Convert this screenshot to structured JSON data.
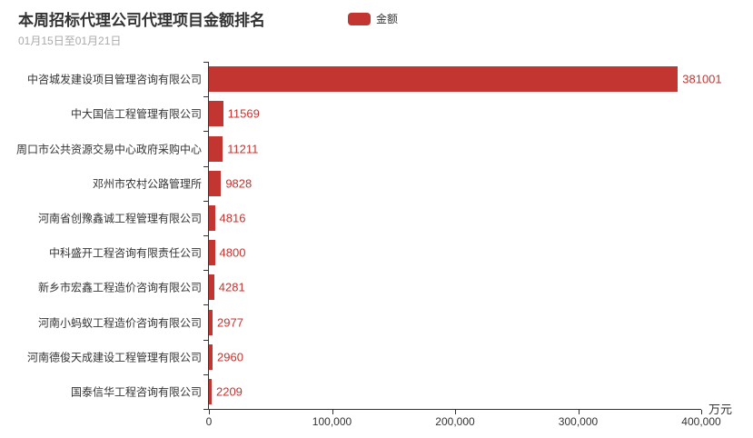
{
  "header": {
    "title": "本周招标代理公司代理项目金额排名",
    "subtitle": "01月15日至01月21日",
    "legend": {
      "label": "金额",
      "swatch_color": "#c23531"
    }
  },
  "chart_data": {
    "type": "bar",
    "orientation": "horizontal",
    "title": "本周招标代理公司代理项目金额排名",
    "subtitle": "01月15日至01月21日",
    "series_name": "金额",
    "categories": [
      "中咨城发建设项目管理咨询有限公司",
      "中大国信工程管理有限公司",
      "周口市公共资源交易中心政府采购中心",
      "邓州市农村公路管理所",
      "河南省创豫鑫诚工程管理有限公司",
      "中科盛开工程咨询有限责任公司",
      "新乡市宏鑫工程造价咨询有限公司",
      "河南小蚂蚁工程造价咨询有限公司",
      "河南德俊天成建设工程管理有限公司",
      "国泰信华工程咨询有限公司"
    ],
    "values": [
      381001,
      11569,
      11211,
      9828,
      4816,
      4800,
      4281,
      2977,
      2960,
      2209
    ],
    "value_labels": [
      "381001",
      "11569",
      "11211",
      "9828",
      "4816",
      "4800",
      "4281",
      "2977",
      "2960",
      "2209"
    ],
    "xlim": [
      0,
      400000
    ],
    "x_tick_values": [
      0,
      100000,
      200000,
      300000,
      400000
    ],
    "x_tick_labels": [
      "0",
      "100,000",
      "200,000",
      "300,000",
      "400,000"
    ],
    "x_unit": "万元",
    "bar_color": "#c23531",
    "value_label_color": "#c23531",
    "axis_color": "#333333",
    "grid": false,
    "legend_position": "top"
  }
}
